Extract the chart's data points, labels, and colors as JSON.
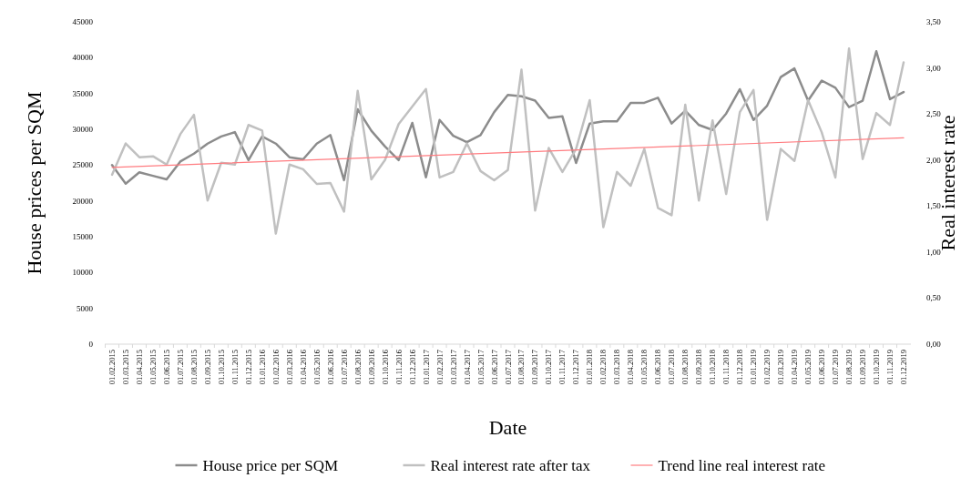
{
  "chart_data": {
    "type": "line",
    "xlabel": "Date",
    "ylabel": "House prices per SQM",
    "y2label": "Real interest rate",
    "categories": [
      "01.02.2015",
      "01.03.2015",
      "01.04.2015",
      "01.05.2015",
      "01.06.2015",
      "01.07.2015",
      "01.08.2015",
      "01.09.2015",
      "01.10.2015",
      "01.11.2015",
      "01.12.2015",
      "01.01.2016",
      "01.02.2016",
      "01.03.2016",
      "01.04.2016",
      "01.05.2016",
      "01.06.2016",
      "01.07.2016",
      "01.08.2016",
      "01.09.2016",
      "01.10.2016",
      "01.11.2016",
      "01.12.2016",
      "01.01.2017",
      "01.02.2017",
      "01.03.2017",
      "01.04.2017",
      "01.05.2017",
      "01.06.2017",
      "01.07.2017",
      "01.08.2017",
      "01.09.2017",
      "01.10.2017",
      "01.11.2017",
      "01.12.2017",
      "01.01.2018",
      "01.02.2018",
      "01.03.2018",
      "01.04.2018",
      "01.05.2018",
      "01.06.2018",
      "01.07.2018",
      "01.08.2018",
      "01.09.2018",
      "01.10.2018",
      "01.11.2018",
      "01.12.2018",
      "01.01.2019",
      "01.02.2019",
      "01.03.2019",
      "01.04.2019",
      "01.05.2019",
      "01.06.2019",
      "01.07.2019",
      "01.08.2019",
      "01.09.2019",
      "01.10.2019",
      "01.11.2019",
      "01.12.2019"
    ],
    "series": [
      {
        "name": "House price per SQM",
        "color": "#8c8c8c",
        "values": [
          25000,
          22400,
          24000,
          23500,
          23000,
          25500,
          26600,
          28000,
          29000,
          29600,
          25700,
          29000,
          28000,
          26100,
          25800,
          28000,
          29200,
          22900,
          32800,
          29800,
          27600,
          25700,
          30900,
          23300,
          31300,
          29100,
          28200,
          29200,
          32400,
          34800,
          34600,
          34000,
          31600,
          31800,
          25300,
          30800,
          31100,
          31100,
          33700,
          33700,
          34400,
          30800,
          32600,
          30600,
          29900,
          32200,
          35600,
          31300,
          33300,
          37300,
          38500,
          34000,
          36800,
          35800,
          33100,
          34000,
          40900,
          34200,
          35200
        ]
      },
      {
        "name": "Real interest rate after tax",
        "color": "#c0c0c0",
        "axis": "y2",
        "values": [
          1.84,
          2.18,
          2.03,
          2.04,
          1.95,
          2.28,
          2.49,
          1.56,
          1.97,
          1.95,
          2.38,
          2.32,
          1.2,
          1.95,
          1.9,
          1.74,
          1.75,
          1.44,
          2.75,
          1.79,
          2.0,
          2.39,
          2.58,
          2.77,
          1.81,
          1.87,
          2.18,
          1.88,
          1.78,
          1.89,
          2.98,
          1.45,
          2.13,
          1.87,
          2.12,
          2.65,
          1.27,
          1.87,
          1.72,
          2.12,
          1.48,
          1.4,
          2.6,
          1.56,
          2.43,
          1.63,
          2.52,
          2.76,
          1.35,
          2.12,
          1.99,
          2.65,
          2.3,
          1.81,
          3.21,
          2.01,
          2.51,
          2.38,
          3.06
        ]
      },
      {
        "name": "Trend line real interest rate",
        "color": "#ff7c80",
        "axis": "y2",
        "x": [
          "01.02.2015",
          "01.12.2019"
        ],
        "values": [
          1.92,
          2.24
        ]
      }
    ],
    "ylim": [
      0,
      45000
    ],
    "yticks": [
      0,
      5000,
      10000,
      15000,
      20000,
      25000,
      30000,
      35000,
      40000,
      45000
    ],
    "y2lim": [
      0,
      3.5
    ],
    "y2ticks": [
      {
        "value": 0,
        "label": "0,00"
      },
      {
        "value": 0.5,
        "label": "0,50"
      },
      {
        "value": 1,
        "label": "1,00"
      },
      {
        "value": 1.5,
        "label": "1,50"
      },
      {
        "value": 2,
        "label": "2,00"
      },
      {
        "value": 2.5,
        "label": "2,50"
      },
      {
        "value": 3,
        "label": "3,00"
      },
      {
        "value": 3.5,
        "label": "3,50"
      }
    ],
    "grid": false,
    "legend": "bottom",
    "line_style": "solid",
    "marker": "none"
  }
}
